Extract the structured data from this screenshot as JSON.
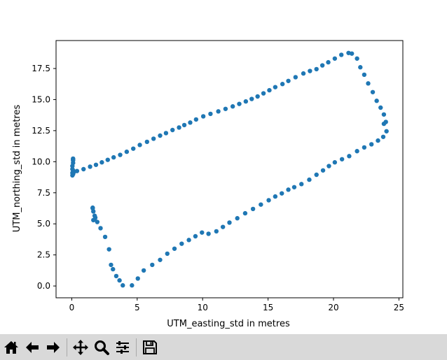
{
  "chart_data": {
    "type": "scatter",
    "title": "",
    "xlabel": "UTM_easting_std in metres",
    "ylabel": "UTM_northing_std in metres",
    "xlim": [
      -1.2,
      25.3
    ],
    "ylim": [
      -0.95,
      19.75
    ],
    "xticks": [
      0,
      5,
      10,
      15,
      20,
      25
    ],
    "xtick_labels": [
      "0",
      "5",
      "10",
      "15",
      "20",
      "25"
    ],
    "yticks": [
      0.0,
      2.5,
      5.0,
      7.5,
      10.0,
      12.5,
      15.0,
      17.5
    ],
    "ytick_labels": [
      "0.0",
      "2.5",
      "5.0",
      "7.5",
      "10.0",
      "12.5",
      "15.0",
      "17.5"
    ],
    "grid": false,
    "color": "#1f77b4",
    "series": [
      {
        "x": [
          0.05,
          0.05,
          0.05,
          0.05,
          0.1,
          0.1,
          0.1,
          0.1,
          0.1,
          0.1,
          0.15,
          0.4,
          0.9,
          1.4,
          1.85,
          2.3,
          2.75,
          3.2,
          3.7,
          4.2,
          4.7,
          5.2,
          5.75,
          6.25,
          6.75,
          7.2,
          7.7,
          8.2,
          8.6,
          9.05,
          9.5,
          10.05,
          10.6,
          11.2,
          11.75,
          12.3,
          12.8,
          13.3,
          13.75,
          14.2,
          14.65,
          15.1,
          15.55,
          16.1,
          16.55,
          17.1,
          17.7,
          18.2,
          18.7,
          19.15,
          19.6,
          20.1,
          20.6,
          21.15,
          21.4,
          21.8,
          22.05,
          22.35,
          22.65,
          23.0,
          23.3,
          23.6,
          23.85,
          24.0,
          23.8,
          23.4,
          22.9,
          22.35,
          21.8,
          21.2,
          20.65,
          20.1,
          19.65,
          19.2,
          18.7,
          18.15,
          17.55,
          17.0,
          16.55,
          16.05,
          15.55,
          15.05,
          14.45,
          13.85,
          13.25,
          12.65,
          12.05,
          11.55,
          11.05,
          10.45,
          9.95,
          9.45,
          8.95,
          8.4,
          7.85,
          7.3,
          6.75,
          6.15,
          5.5,
          5.05,
          4.6,
          3.9,
          3.65,
          3.4,
          3.15,
          3.0,
          2.85,
          2.55,
          2.2,
          1.95,
          1.75,
          1.65,
          1.6,
          1.6,
          1.65,
          1.75,
          1.8
        ],
        "y": [
          8.9,
          9.1,
          9.4,
          9.65,
          9.9,
          10.1,
          10.25,
          10.2,
          9.0,
          9.3,
          9.15,
          9.25,
          9.4,
          9.6,
          9.75,
          9.95,
          10.15,
          10.35,
          10.55,
          10.8,
          11.05,
          11.35,
          11.6,
          11.85,
          12.1,
          12.3,
          12.55,
          12.75,
          12.95,
          13.15,
          13.4,
          13.65,
          13.85,
          14.05,
          14.25,
          14.45,
          14.65,
          14.85,
          15.05,
          15.25,
          15.5,
          15.75,
          16.0,
          16.25,
          16.5,
          16.8,
          17.1,
          17.3,
          17.45,
          17.75,
          18.0,
          18.3,
          18.6,
          18.75,
          18.7,
          18.3,
          17.6,
          17.0,
          16.3,
          15.6,
          14.9,
          14.35,
          13.8,
          13.2,
          12.0,
          11.7,
          11.4,
          11.15,
          10.85,
          10.45,
          10.2,
          9.95,
          9.65,
          9.3,
          8.95,
          8.55,
          8.2,
          7.95,
          7.75,
          7.45,
          7.2,
          6.9,
          6.55,
          6.2,
          5.85,
          5.45,
          5.1,
          4.75,
          4.4,
          4.2,
          4.3,
          4.0,
          3.7,
          3.4,
          3.0,
          2.6,
          2.1,
          1.7,
          1.25,
          0.6,
          0.05,
          0.05,
          0.45,
          0.8,
          1.35,
          1.7,
          2.95,
          3.95,
          4.65,
          5.15,
          5.65,
          6.0,
          6.25,
          6.3,
          5.3,
          5.35,
          5.5
        ]
      },
      {
        "x": [
          24.05,
          23.85
        ],
        "y": [
          12.45,
          13.05
        ]
      }
    ]
  },
  "toolbar": {
    "buttons": [
      {
        "name": "home",
        "icon": "home-icon"
      },
      {
        "name": "back",
        "icon": "back-arrow-icon"
      },
      {
        "name": "forward",
        "icon": "forward-arrow-icon"
      },
      {
        "name": "pan",
        "icon": "pan-move-icon"
      },
      {
        "name": "zoom",
        "icon": "zoom-magnifier-icon"
      },
      {
        "name": "configure-subplots",
        "icon": "sliders-icon"
      },
      {
        "name": "save",
        "icon": "save-disk-icon"
      }
    ]
  }
}
